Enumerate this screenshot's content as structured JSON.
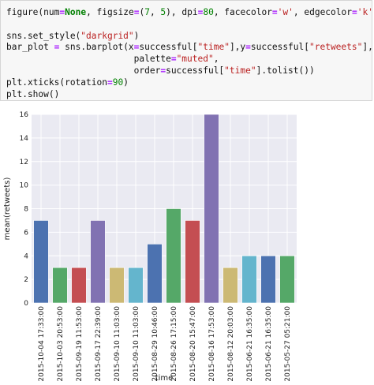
{
  "code_cell": {
    "lines": [
      "figure(num=None, figsize=(7, 5), dpi=80, facecolor='w', edgecolor='k')",
      "",
      "sns.set_style(\"darkgrid\")",
      "bar_plot = sns.barplot(x=successful[\"time\"],y=successful[\"retweets\"],",
      "                        palette=\"muted\",",
      "                        order=successful[\"time\"].tolist())",
      "plt.xticks(rotation=90)",
      "plt.show()"
    ]
  },
  "chart_data": {
    "type": "bar",
    "xlabel": "time",
    "ylabel": "mean(retweets)",
    "ylim": [
      0,
      16
    ],
    "yticks": [
      0,
      2,
      4,
      6,
      8,
      10,
      12,
      14,
      16
    ],
    "grid": true,
    "background": "#eaeaf2",
    "categories": [
      "2015-10-04 17:33:00",
      "2015-10-03 20:53:00",
      "2015-09-19 11:53:00",
      "2015-09-17 22:39:00",
      "2015-09-10 11:03:00",
      "2015-09-10 11:03:00",
      "2015-08-29 10:46:00",
      "2015-08-26 17:15:00",
      "2015-08-20 15:47:00",
      "2015-08-16 17:53:00",
      "2015-08-12 20:03:00",
      "2015-06-21 16:35:00",
      "2015-06-21 16:35:00",
      "2015-05-27 05:21:00"
    ],
    "values": [
      7,
      3,
      3,
      7,
      3,
      3,
      5,
      8,
      7,
      16,
      3,
      4,
      4,
      4
    ],
    "colors": [
      "#4c72b0",
      "#55a868",
      "#c44e52",
      "#8172b2",
      "#ccb974",
      "#64b5cd",
      "#4c72b0",
      "#55a868",
      "#c44e52",
      "#8172b2",
      "#ccb974",
      "#64b5cd",
      "#4c72b0",
      "#55a868"
    ]
  }
}
